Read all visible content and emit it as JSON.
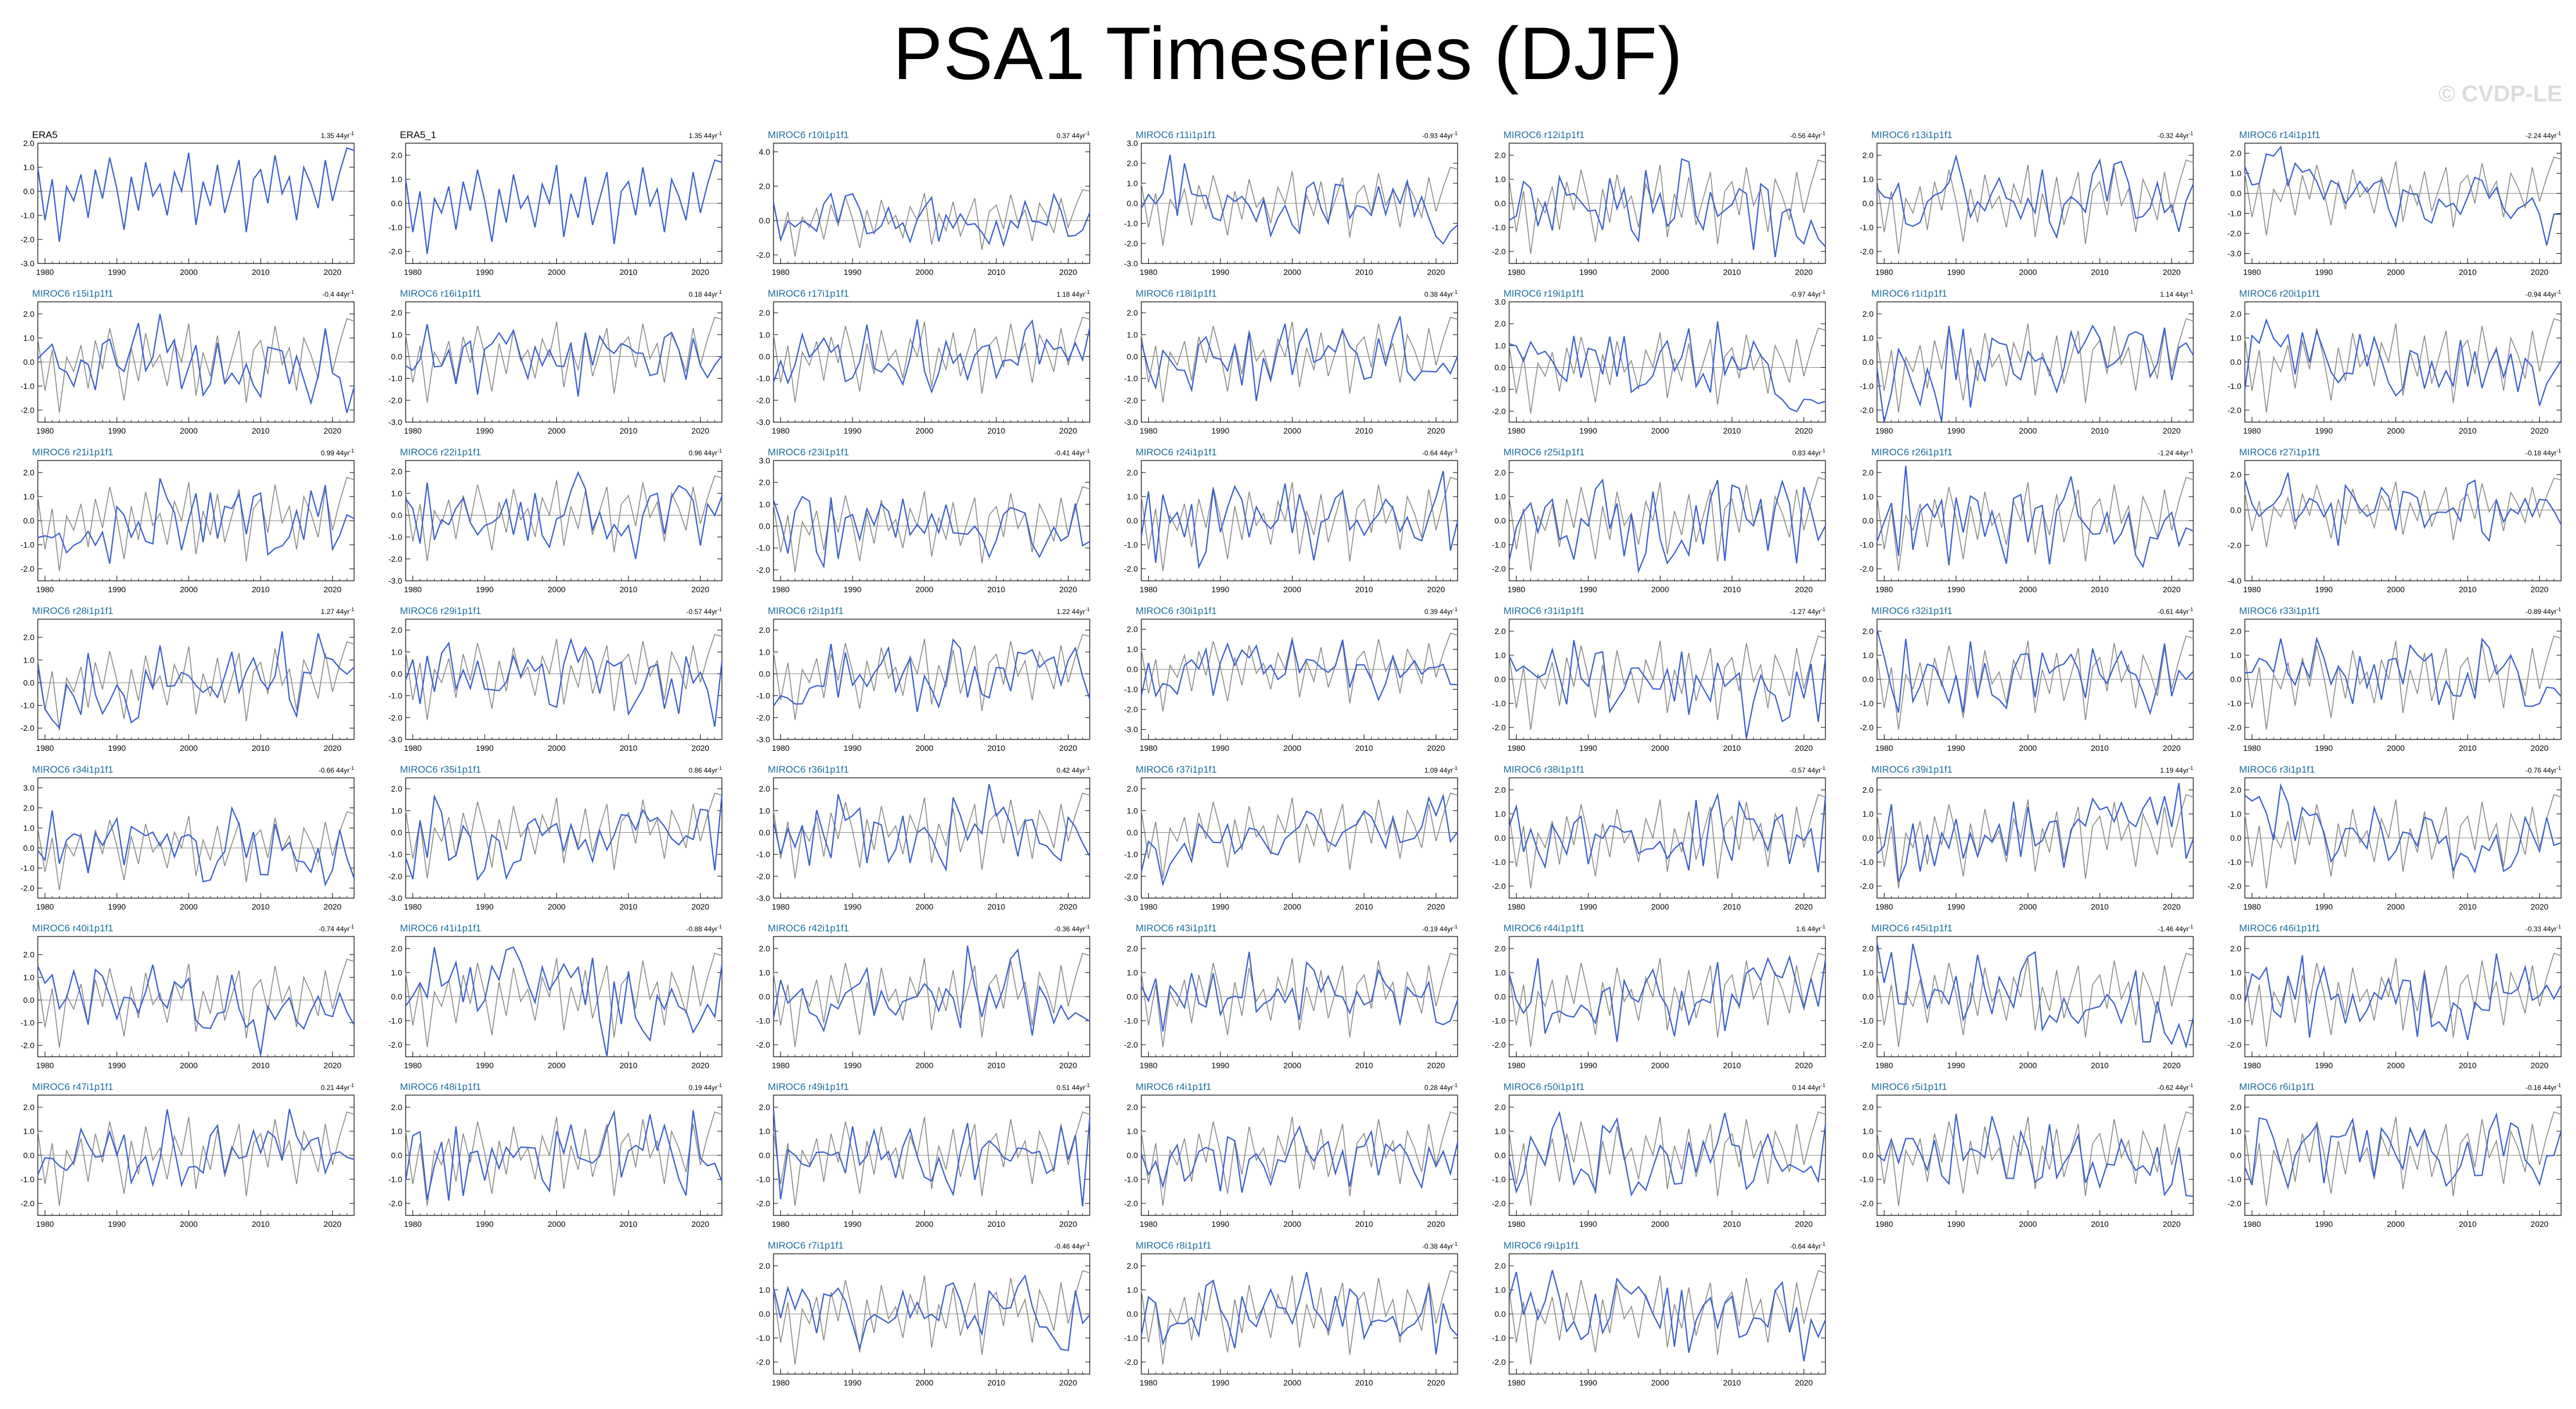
{
  "title": "PSA1 Timeseries (DJF)",
  "watermark": "© CVDP-LE",
  "colors": {
    "model_line": "#3a5fcd",
    "obs_line": "#8a8a8a",
    "model_label": "#1a6f9a",
    "obs_label": "#000000"
  },
  "chart_data": {
    "type": "line",
    "x_start": 1979,
    "x_end": 2023,
    "xticks": [
      "1980",
      "1990",
      "2000",
      "2010",
      "2020"
    ],
    "trend_unit": "44yr",
    "reference_series": "ERA5",
    "obs_values": [
      1.0,
      -1.2,
      0.5,
      -2.1,
      0.2,
      -0.4,
      0.7,
      -1.1,
      0.9,
      -0.3,
      1.4,
      0.1,
      -1.6,
      0.6,
      -0.8,
      1.2,
      -0.2,
      0.3,
      -1.0,
      0.8,
      0.0,
      1.6,
      -1.4,
      0.4,
      -0.6,
      1.1,
      -0.9,
      0.2,
      1.3,
      -1.7,
      0.5,
      0.9,
      -0.5,
      1.5,
      -0.1,
      0.6,
      -1.2,
      1.0,
      0.3,
      -0.7,
      1.3,
      -0.4,
      0.8,
      1.8,
      1.7
    ],
    "panels": [
      {
        "label": "ERA5",
        "trend": "1.35",
        "obs": true,
        "yticks": [
          "2.0",
          "1.0",
          "0.0",
          "-1.0",
          "-2.0",
          "-3.0"
        ],
        "ylim": [
          -3,
          2
        ]
      },
      {
        "label": "ERA5_1",
        "trend": "1.35",
        "obs": true,
        "yticks": [
          "2.0",
          "1.0",
          "0.0",
          "-1.0",
          "-2.0"
        ],
        "ylim": [
          -2.5,
          2.5
        ]
      },
      {
        "label": "MIROC6 r10i1p1f1",
        "trend": "0.37",
        "yticks": [
          "4.0",
          "2.0",
          "0.0",
          "-2.0"
        ],
        "ylim": [
          -2.5,
          4.5
        ]
      },
      {
        "label": "MIROC6 r11i1p1f1",
        "trend": "-0.93",
        "yticks": [
          "3.0",
          "2.0",
          "1.0",
          "0.0",
          "-1.0",
          "-2.0",
          "-3.0"
        ],
        "ylim": [
          -3,
          3
        ]
      },
      {
        "label": "MIROC6 r12i1p1f1",
        "trend": "-0.56",
        "yticks": [
          "2.0",
          "1.0",
          "0.0",
          "-1.0",
          "-2.0"
        ],
        "ylim": [
          -2.5,
          2.5
        ]
      },
      {
        "label": "MIROC6 r13i1p1f1",
        "trend": "-0.32",
        "yticks": [
          "2.0",
          "1.0",
          "0.0",
          "-1.0",
          "-2.0"
        ],
        "ylim": [
          -2.5,
          2.5
        ]
      },
      {
        "label": "MIROC6 r14i1p1f1",
        "trend": "-2.24",
        "yticks": [
          "2.0",
          "1.0",
          "0.0",
          "-1.0",
          "-2.0",
          "-3.0"
        ],
        "ylim": [
          -3.5,
          2.5
        ]
      },
      {
        "label": "MIROC6 r15i1p1f1",
        "trend": "-0.4",
        "yticks": [
          "2.0",
          "1.0",
          "0.0",
          "-1.0",
          "-2.0"
        ],
        "ylim": [
          -2.5,
          2.5
        ]
      },
      {
        "label": "MIROC6 r16i1p1f1",
        "trend": "0.18",
        "yticks": [
          "2.0",
          "1.0",
          "0.0",
          "-1.0",
          "-2.0",
          "-3.0"
        ],
        "ylim": [
          -3,
          2.5
        ]
      },
      {
        "label": "MIROC6 r17i1p1f1",
        "trend": "1.18",
        "yticks": [
          "2.0",
          "1.0",
          "0.0",
          "-1.0",
          "-2.0",
          "-3.0"
        ],
        "ylim": [
          -3,
          2.5
        ]
      },
      {
        "label": "MIROC6 r18i1p1f1",
        "trend": "0.38",
        "yticks": [
          "2.0",
          "1.0",
          "0.0",
          "-1.0",
          "-2.0",
          "-3.0"
        ],
        "ylim": [
          -3,
          2.5
        ]
      },
      {
        "label": "MIROC6 r19i1p1f1",
        "trend": "-0.97",
        "yticks": [
          "3.0",
          "2.0",
          "1.0",
          "0.0",
          "-1.0",
          "-2.0"
        ],
        "ylim": [
          -2.5,
          3
        ]
      },
      {
        "label": "MIROC6 r1i1p1f1",
        "trend": "1.14",
        "yticks": [
          "2.0",
          "1.0",
          "0.0",
          "-1.0",
          "-2.0"
        ],
        "ylim": [
          -2.5,
          2.5
        ]
      },
      {
        "label": "MIROC6 r20i1p1f1",
        "trend": "-0.94",
        "yticks": [
          "2.0",
          "1.0",
          "0.0",
          "-1.0",
          "-2.0"
        ],
        "ylim": [
          -2.5,
          2.5
        ]
      },
      {
        "label": "MIROC6 r21i1p1f1",
        "trend": "0.99",
        "yticks": [
          "2.0",
          "1.0",
          "0.0",
          "-1.0",
          "-2.0"
        ],
        "ylim": [
          -2.5,
          2.5
        ]
      },
      {
        "label": "MIROC6 r22i1p1f1",
        "trend": "0.96",
        "yticks": [
          "2.0",
          "1.0",
          "0.0",
          "-1.0",
          "-2.0",
          "-3.0"
        ],
        "ylim": [
          -3,
          2.5
        ]
      },
      {
        "label": "MIROC6 r23i1p1f1",
        "trend": "-0.41",
        "yticks": [
          "3.0",
          "2.0",
          "1.0",
          "0.0",
          "-1.0",
          "-2.0"
        ],
        "ylim": [
          -2.5,
          3
        ]
      },
      {
        "label": "MIROC6 r24i1p1f1",
        "trend": "-0.64",
        "yticks": [
          "2.0",
          "1.0",
          "0.0",
          "-1.0",
          "-2.0"
        ],
        "ylim": [
          -2.5,
          2.5
        ]
      },
      {
        "label": "MIROC6 r25i1p1f1",
        "trend": "0.83",
        "yticks": [
          "2.0",
          "1.0",
          "0.0",
          "-1.0",
          "-2.0"
        ],
        "ylim": [
          -2.5,
          2.5
        ]
      },
      {
        "label": "MIROC6 r26i1p1f1",
        "trend": "-1.24",
        "yticks": [
          "2.0",
          "1.0",
          "0.0",
          "-1.0",
          "-2.0"
        ],
        "ylim": [
          -2.5,
          2.5
        ]
      },
      {
        "label": "MIROC6 r27i1p1f1",
        "trend": "-0.18",
        "yticks": [
          "2.0",
          "0.0",
          "-2.0",
          "-4.0"
        ],
        "ylim": [
          -4,
          2.8
        ]
      },
      {
        "label": "MIROC6 r28i1p1f1",
        "trend": "1.27",
        "yticks": [
          "2.0",
          "1.0",
          "0.0",
          "-1.0",
          "-2.0"
        ],
        "ylim": [
          -2.5,
          2.8
        ]
      },
      {
        "label": "MIROC6 r29i1p1f1",
        "trend": "-0.57",
        "yticks": [
          "2.0",
          "1.0",
          "0.0",
          "-1.0",
          "-2.0",
          "-3.0"
        ],
        "ylim": [
          -3,
          2.5
        ]
      },
      {
        "label": "MIROC6 r2i1p1f1",
        "trend": "1.22",
        "yticks": [
          "2.0",
          "1.0",
          "0.0",
          "-1.0",
          "-2.0",
          "-3.0"
        ],
        "ylim": [
          -3,
          2.5
        ]
      },
      {
        "label": "MIROC6 r30i1p1f1",
        "trend": "0.39",
        "yticks": [
          "2.0",
          "1.0",
          "0.0",
          "-1.0",
          "-2.0",
          "-3.0"
        ],
        "ylim": [
          -3.5,
          2.5
        ]
      },
      {
        "label": "MIROC6 r31i1p1f1",
        "trend": "-1.27",
        "yticks": [
          "2.0",
          "1.0",
          "0.0",
          "-1.0",
          "-2.0"
        ],
        "ylim": [
          -2.5,
          2.5
        ]
      },
      {
        "label": "MIROC6 r32i1p1f1",
        "trend": "-0.61",
        "yticks": [
          "2.0",
          "1.0",
          "0.0",
          "-1.0",
          "-2.0"
        ],
        "ylim": [
          -2.5,
          2.5
        ]
      },
      {
        "label": "MIROC6 r33i1p1f1",
        "trend": "-0.89",
        "yticks": [
          "2.0",
          "1.0",
          "0.0",
          "-1.0",
          "-2.0"
        ],
        "ylim": [
          -2.5,
          2.5
        ]
      },
      {
        "label": "MIROC6 r34i1p1f1",
        "trend": "-0.66",
        "yticks": [
          "3.0",
          "2.0",
          "1.0",
          "0.0",
          "-1.0",
          "-2.0"
        ],
        "ylim": [
          -2.5,
          3.5
        ]
      },
      {
        "label": "MIROC6 r35i1p1f1",
        "trend": "0.86",
        "yticks": [
          "2.0",
          "1.0",
          "0.0",
          "-1.0",
          "-2.0",
          "-3.0"
        ],
        "ylim": [
          -3,
          2.5
        ]
      },
      {
        "label": "MIROC6 r36i1p1f1",
        "trend": "0.42",
        "yticks": [
          "2.0",
          "1.0",
          "0.0",
          "-1.0",
          "-2.0",
          "-3.0"
        ],
        "ylim": [
          -3,
          2.5
        ]
      },
      {
        "label": "MIROC6 r37i1p1f1",
        "trend": "1.09",
        "yticks": [
          "2.0",
          "1.0",
          "0.0",
          "-1.0",
          "-2.0",
          "-3.0"
        ],
        "ylim": [
          -3,
          2.5
        ]
      },
      {
        "label": "MIROC6 r38i1p1f1",
        "trend": "-0.57",
        "yticks": [
          "2.0",
          "1.0",
          "0.0",
          "-1.0",
          "-2.0"
        ],
        "ylim": [
          -2.5,
          2.5
        ]
      },
      {
        "label": "MIROC6 r39i1p1f1",
        "trend": "1.19",
        "yticks": [
          "2.0",
          "1.0",
          "0.0",
          "-1.0",
          "-2.0"
        ],
        "ylim": [
          -2.5,
          2.5
        ]
      },
      {
        "label": "MIROC6 r3i1p1f1",
        "trend": "-0.76",
        "yticks": [
          "2.0",
          "1.0",
          "0.0",
          "-1.0",
          "-2.0"
        ],
        "ylim": [
          -2.5,
          2.5
        ]
      },
      {
        "label": "MIROC6 r40i1p1f1",
        "trend": "-0.74",
        "yticks": [
          "2.0",
          "1.0",
          "0.0",
          "-1.0",
          "-2.0"
        ],
        "ylim": [
          -2.5,
          2.8
        ]
      },
      {
        "label": "MIROC6 r41i1p1f1",
        "trend": "-0.88",
        "yticks": [
          "2.0",
          "1.0",
          "0.0",
          "-1.0",
          "-2.0"
        ],
        "ylim": [
          -2.5,
          2.5
        ]
      },
      {
        "label": "MIROC6 r42i1p1f1",
        "trend": "-0.36",
        "yticks": [
          "2.0",
          "1.0",
          "0.0",
          "-1.0",
          "-2.0"
        ],
        "ylim": [
          -2.5,
          2.5
        ]
      },
      {
        "label": "MIROC6 r43i1p1f1",
        "trend": "-0.19",
        "yticks": [
          "2.0",
          "1.0",
          "0.0",
          "-1.0",
          "-2.0"
        ],
        "ylim": [
          -2.5,
          2.5
        ]
      },
      {
        "label": "MIROC6 r44i1p1f1",
        "trend": "1.6",
        "yticks": [
          "2.0",
          "1.0",
          "0.0",
          "-1.0",
          "-2.0"
        ],
        "ylim": [
          -2.5,
          2.5
        ]
      },
      {
        "label": "MIROC6 r45i1p1f1",
        "trend": "-1.46",
        "yticks": [
          "2.0",
          "1.0",
          "0.0",
          "-1.0",
          "-2.0"
        ],
        "ylim": [
          -2.5,
          2.5
        ]
      },
      {
        "label": "MIROC6 r46i1p1f1",
        "trend": "-0.33",
        "yticks": [
          "2.0",
          "1.0",
          "0.0",
          "-1.0",
          "-2.0"
        ],
        "ylim": [
          -2.5,
          2.5
        ]
      },
      {
        "label": "MIROC6 r47i1p1f1",
        "trend": "0.21",
        "yticks": [
          "2.0",
          "1.0",
          "0.0",
          "-1.0",
          "-2.0"
        ],
        "ylim": [
          -2.5,
          2.5
        ]
      },
      {
        "label": "MIROC6 r48i1p1f1",
        "trend": "0.19",
        "yticks": [
          "2.0",
          "1.0",
          "0.0",
          "-1.0",
          "-2.0"
        ],
        "ylim": [
          -2.5,
          2.5
        ]
      },
      {
        "label": "MIROC6 r49i1p1f1",
        "trend": "0.51",
        "yticks": [
          "2.0",
          "1.0",
          "0.0",
          "-1.0",
          "-2.0"
        ],
        "ylim": [
          -2.5,
          2.5
        ]
      },
      {
        "label": "MIROC6 r4i1p1f1",
        "trend": "0.28",
        "yticks": [
          "2.0",
          "1.0",
          "0.0",
          "-1.0",
          "-2.0"
        ],
        "ylim": [
          -2.5,
          2.5
        ]
      },
      {
        "label": "MIROC6 r50i1p1f1",
        "trend": "0.14",
        "yticks": [
          "2.0",
          "1.0",
          "0.0",
          "-1.0",
          "-2.0"
        ],
        "ylim": [
          -2.5,
          2.5
        ]
      },
      {
        "label": "MIROC6 r5i1p1f1",
        "trend": "-0.62",
        "yticks": [
          "2.0",
          "1.0",
          "0.0",
          "-1.0",
          "-2.0"
        ],
        "ylim": [
          -2.5,
          2.5
        ]
      },
      {
        "label": "MIROC6 r6i1p1f1",
        "trend": "-0.16",
        "yticks": [
          "2.0",
          "1.0",
          "0.0",
          "-1.0",
          "-2.0"
        ],
        "ylim": [
          -2.5,
          2.5
        ]
      },
      {
        "label": "MIROC6 r7i1p1f1",
        "trend": "-0.46",
        "yticks": [
          "2.0",
          "1.0",
          "0.0",
          "-1.0",
          "-2.0"
        ],
        "ylim": [
          -2.5,
          2.5
        ]
      },
      {
        "label": "MIROC6 r8i1p1f1",
        "trend": "-0.38",
        "yticks": [
          "2.0",
          "1.0",
          "0.0",
          "-1.0",
          "-2.0"
        ],
        "ylim": [
          -2.5,
          2.5
        ]
      },
      {
        "label": "MIROC6 r9i1p1f1",
        "trend": "-0.64",
        "yticks": [
          "2.0",
          "1.0",
          "0.0",
          "-1.0",
          "-2.0"
        ],
        "ylim": [
          -2.5,
          2.5
        ]
      }
    ]
  }
}
